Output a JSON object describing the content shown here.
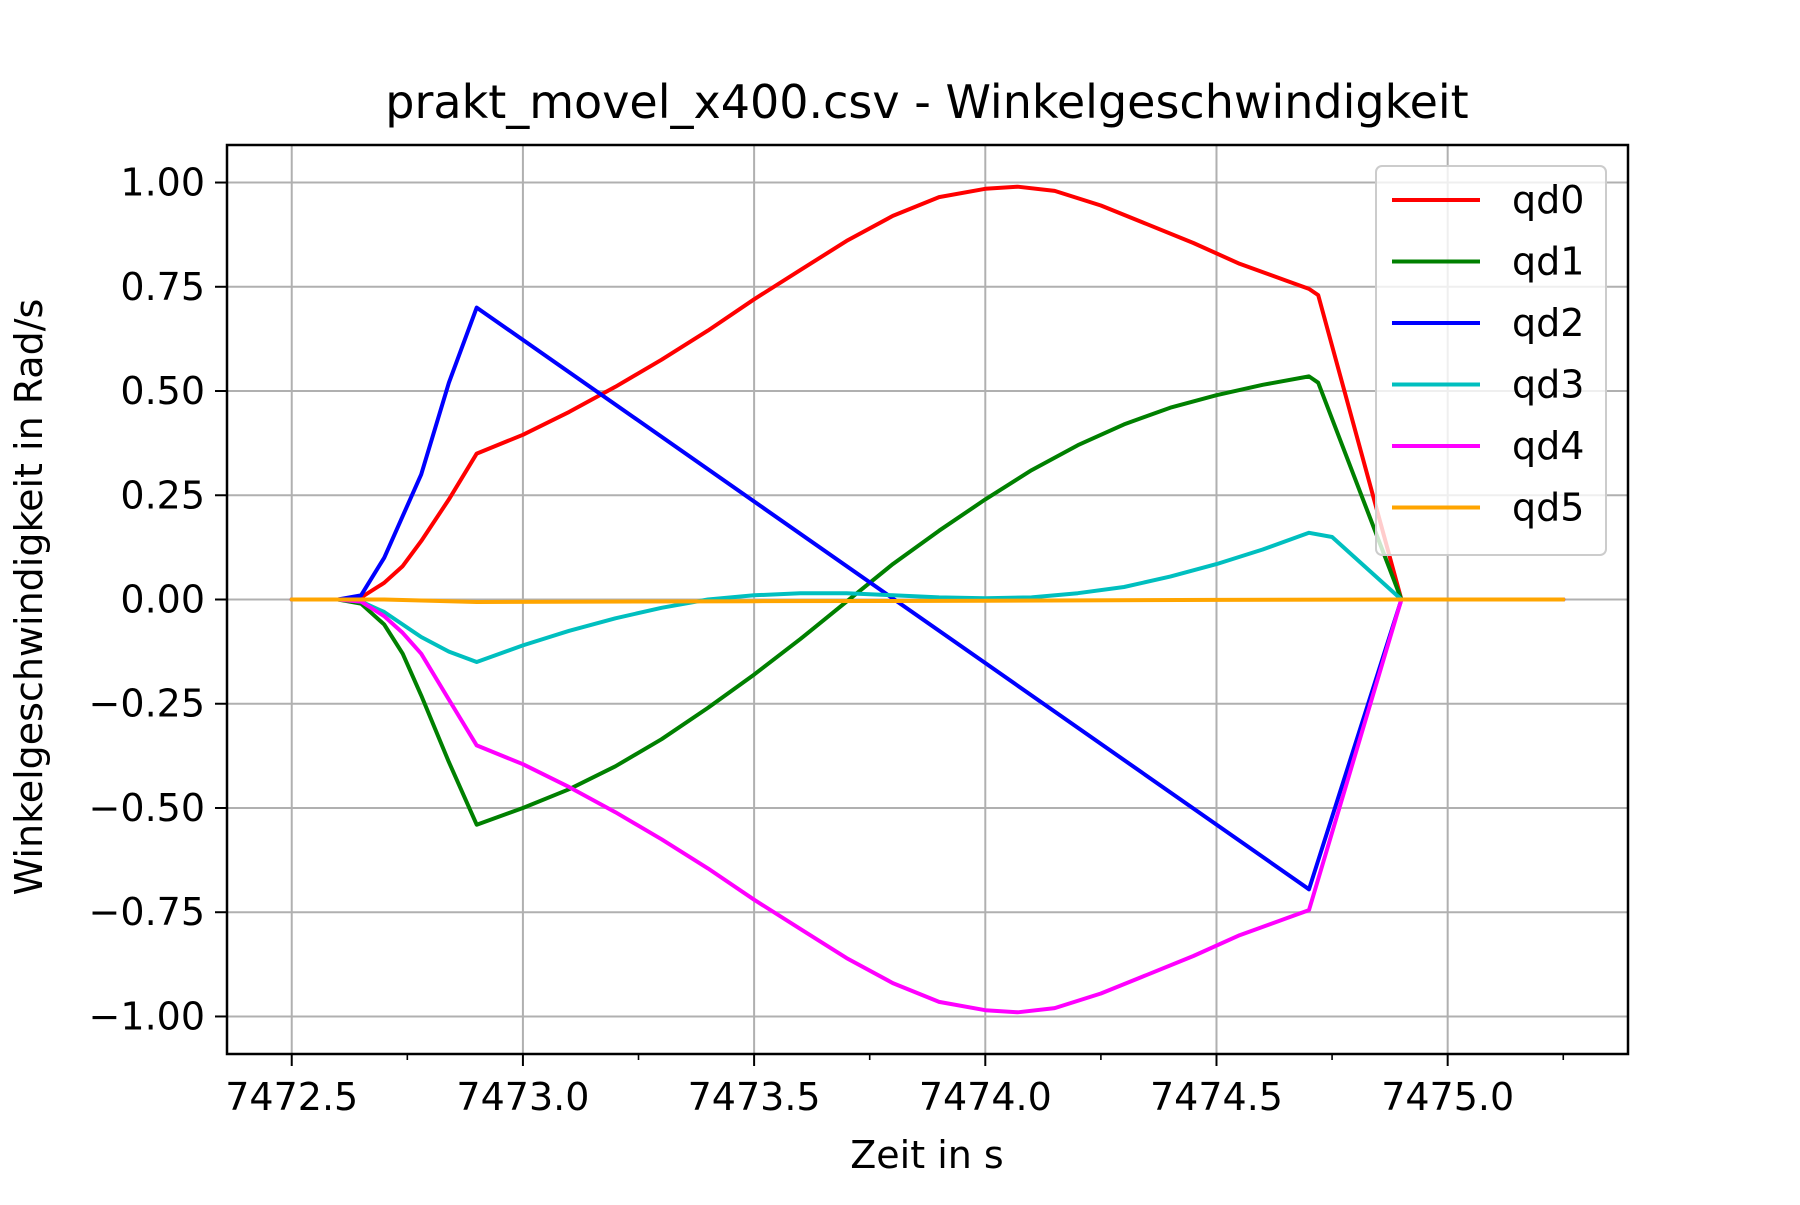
{
  "chart_data": {
    "type": "line",
    "title": "prakt_movel_x400.csv - Winkelgeschwindigkeit",
    "xlabel": "Zeit in s",
    "ylabel": "Winkelgeschwindigkeit in Rad/s",
    "xlim": [
      7472.36,
      7475.39
    ],
    "ylim": [
      -1.09,
      1.09
    ],
    "grid": true,
    "legend_position": "upper right",
    "x_ticks": [
      {
        "value": 7472.5,
        "label": "7472.5"
      },
      {
        "value": 7473.0,
        "label": "7473.0"
      },
      {
        "value": 7473.5,
        "label": "7473.5"
      },
      {
        "value": 7474.0,
        "label": "7474.0"
      },
      {
        "value": 7474.5,
        "label": "7474.5"
      },
      {
        "value": 7475.0,
        "label": "7475.0"
      }
    ],
    "x_minor_ticks": [
      7472.75,
      7473.25,
      7473.75,
      7474.25,
      7474.75,
      7475.25
    ],
    "y_ticks": [
      {
        "value": 1.0,
        "label": "1.00"
      },
      {
        "value": 0.75,
        "label": "0.75"
      },
      {
        "value": 0.5,
        "label": "0.50"
      },
      {
        "value": 0.25,
        "label": "0.25"
      },
      {
        "value": 0.0,
        "label": "0.00"
      },
      {
        "value": -0.25,
        "label": "−0.25"
      },
      {
        "value": -0.5,
        "label": "−0.50"
      },
      {
        "value": -0.75,
        "label": "−0.75"
      },
      {
        "value": -1.0,
        "label": "−1.00"
      }
    ],
    "series": [
      {
        "name": "qd0",
        "color": "#ff0000",
        "x": [
          7472.5,
          7472.6,
          7472.65,
          7472.7,
          7472.74,
          7472.78,
          7472.84,
          7472.9,
          7473.0,
          7473.1,
          7473.2,
          7473.3,
          7473.4,
          7473.5,
          7473.6,
          7473.7,
          7473.8,
          7473.9,
          7474.0,
          7474.07,
          7474.15,
          7474.25,
          7474.35,
          7474.45,
          7474.55,
          7474.65,
          7474.7,
          7474.72,
          7474.9,
          7475.25
        ],
        "y": [
          0.0,
          0.0,
          0.005,
          0.04,
          0.08,
          0.14,
          0.24,
          0.35,
          0.395,
          0.45,
          0.51,
          0.575,
          0.645,
          0.72,
          0.79,
          0.86,
          0.92,
          0.965,
          0.985,
          0.99,
          0.98,
          0.945,
          0.9,
          0.855,
          0.805,
          0.765,
          0.745,
          0.73,
          0.0,
          0.0
        ]
      },
      {
        "name": "qd1",
        "color": "#008000",
        "x": [
          7472.5,
          7472.6,
          7472.65,
          7472.7,
          7472.74,
          7472.78,
          7472.84,
          7472.9,
          7473.0,
          7473.1,
          7473.2,
          7473.3,
          7473.4,
          7473.5,
          7473.6,
          7473.7,
          7473.8,
          7473.9,
          7474.0,
          7474.1,
          7474.2,
          7474.3,
          7474.4,
          7474.5,
          7474.6,
          7474.7,
          7474.72,
          7474.9,
          7475.25
        ],
        "y": [
          0.0,
          0.0,
          -0.01,
          -0.06,
          -0.13,
          -0.23,
          -0.39,
          -0.54,
          -0.5,
          -0.455,
          -0.4,
          -0.335,
          -0.26,
          -0.18,
          -0.095,
          -0.005,
          0.085,
          0.165,
          0.24,
          0.31,
          0.37,
          0.42,
          0.46,
          0.49,
          0.515,
          0.535,
          0.52,
          0.0,
          0.0
        ]
      },
      {
        "name": "qd2",
        "color": "#0000ff",
        "x": [
          7472.5,
          7472.6,
          7472.65,
          7472.7,
          7472.74,
          7472.78,
          7472.84,
          7472.9,
          7474.7,
          7474.9,
          7475.25
        ],
        "y": [
          0.0,
          0.0,
          0.01,
          0.1,
          0.2,
          0.3,
          0.52,
          0.7,
          -0.695,
          0.0,
          0.0
        ]
      },
      {
        "name": "qd3",
        "color": "#00bfbf",
        "x": [
          7472.5,
          7472.6,
          7472.65,
          7472.7,
          7472.74,
          7472.78,
          7472.84,
          7472.9,
          7473.0,
          7473.1,
          7473.2,
          7473.3,
          7473.4,
          7473.5,
          7473.6,
          7473.7,
          7473.8,
          7473.9,
          7474.0,
          7474.1,
          7474.2,
          7474.3,
          7474.4,
          7474.5,
          7474.6,
          7474.7,
          7474.75,
          7474.9,
          7475.25
        ],
        "y": [
          0.0,
          0.0,
          -0.005,
          -0.03,
          -0.06,
          -0.09,
          -0.125,
          -0.15,
          -0.11,
          -0.075,
          -0.045,
          -0.02,
          0.0,
          0.01,
          0.015,
          0.015,
          0.01,
          0.005,
          0.003,
          0.005,
          0.015,
          0.03,
          0.055,
          0.085,
          0.12,
          0.16,
          0.15,
          0.0,
          0.0
        ]
      },
      {
        "name": "qd4",
        "color": "#ff00ff",
        "x": [
          7472.5,
          7472.6,
          7472.65,
          7472.7,
          7472.74,
          7472.78,
          7472.84,
          7472.9,
          7473.0,
          7473.1,
          7473.2,
          7473.3,
          7473.4,
          7473.5,
          7473.6,
          7473.7,
          7473.8,
          7473.9,
          7474.0,
          7474.07,
          7474.15,
          7474.25,
          7474.35,
          7474.45,
          7474.55,
          7474.65,
          7474.7,
          7474.9,
          7475.25
        ],
        "y": [
          0.0,
          0.0,
          -0.005,
          -0.04,
          -0.08,
          -0.13,
          -0.24,
          -0.35,
          -0.395,
          -0.45,
          -0.51,
          -0.575,
          -0.645,
          -0.72,
          -0.79,
          -0.86,
          -0.92,
          -0.965,
          -0.985,
          -0.99,
          -0.98,
          -0.945,
          -0.9,
          -0.855,
          -0.805,
          -0.765,
          -0.745,
          0.0,
          0.0
        ]
      },
      {
        "name": "qd5",
        "color": "#ffa500",
        "x": [
          7472.5,
          7472.7,
          7472.9,
          7473.5,
          7474.0,
          7474.5,
          7474.9,
          7475.25
        ],
        "y": [
          0.0,
          0.0,
          -0.006,
          -0.004,
          -0.003,
          -0.001,
          0.0,
          0.0
        ]
      }
    ]
  }
}
